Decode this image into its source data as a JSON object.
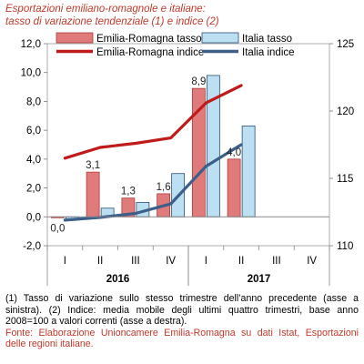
{
  "chart_data": {
    "type": "bar+line",
    "title": "Esportazioni emiliano-romagnole e italiane:",
    "subtitle": "tasso di variazione tendenziale (1) e indice (2)",
    "categories": [
      "I",
      "II",
      "III",
      "IV",
      "I",
      "II",
      "III",
      "IV"
    ],
    "year_groups": [
      {
        "label": "2016",
        "start": 0,
        "end": 3
      },
      {
        "label": "2017",
        "start": 4,
        "end": 7
      }
    ],
    "y_left": {
      "min": -2,
      "max": 12,
      "step": 2,
      "ticks": [
        "-2,0",
        "0,0",
        "2,0",
        "4,0",
        "6,0",
        "8,0",
        "10,0",
        "12,0"
      ]
    },
    "y_right": {
      "min": 110,
      "max": 125,
      "step": 5,
      "ticks": [
        "110",
        "115",
        "120",
        "125"
      ]
    },
    "bar_series": [
      {
        "name": "Emilia-Romagna tasso",
        "color": "#e07b7b",
        "stroke": "#b03a3a",
        "values": [
          0.0,
          3.1,
          1.3,
          1.6,
          8.9,
          4.0,
          null,
          null
        ]
      },
      {
        "name": "Italia tasso",
        "color": "#bcdff2",
        "stroke": "#2a4f74",
        "values": [
          -0.2,
          0.6,
          1.0,
          3.0,
          9.8,
          6.3,
          null,
          null
        ]
      }
    ],
    "line_series": [
      {
        "name": "Emilia-Romagna indice",
        "color": "#c01a1a",
        "values": [
          116.5,
          117.3,
          117.6,
          118.0,
          120.6,
          121.9,
          null,
          null
        ]
      },
      {
        "name": "Italia indice",
        "color": "#3c5f8a",
        "values": [
          111.9,
          112.1,
          112.4,
          113.1,
          115.9,
          117.5,
          null,
          null
        ]
      }
    ],
    "data_labels": [
      {
        "index": 0,
        "text": "0,0",
        "y": 0.0
      },
      {
        "index": 1,
        "text": "3,1",
        "y": 3.1
      },
      {
        "index": 2,
        "text": "1,3",
        "y": 1.3
      },
      {
        "index": 3,
        "text": "1,6",
        "y": 1.6
      },
      {
        "index": 4,
        "text": "8,9",
        "y": 8.9
      },
      {
        "index": 5,
        "text": "4,0",
        "y": 4.0
      }
    ]
  },
  "notes": {
    "note1": "(1) Tasso di variazione sullo stesso trimestre dell’anno precedente (asse a sinistra). (2) Indice: media mobile degli ultimi quattro trimestri, base anno 2008=100 a valori correnti (asse a destra).",
    "source": "Fonte: Elaborazione Unioncamere Emilia-Romagna su dati Istat, Esportazioni delle regioni italiane."
  }
}
